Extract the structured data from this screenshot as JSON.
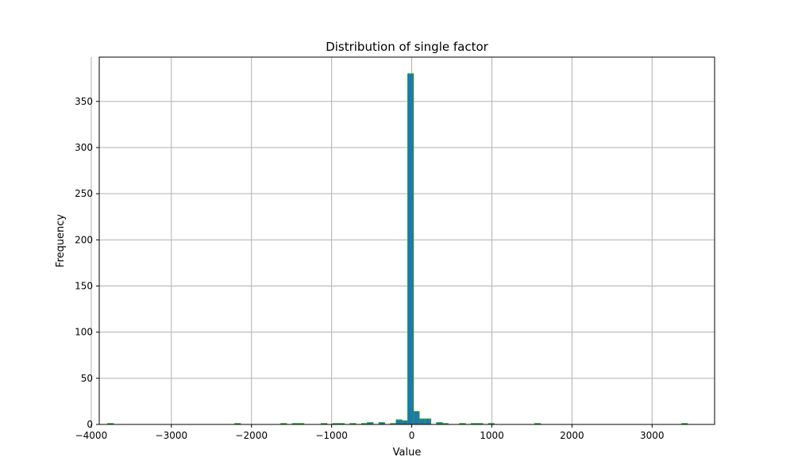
{
  "chart_data": {
    "type": "bar",
    "title": "Distribution of single factor",
    "xlabel": "Value",
    "ylabel": "Frequency",
    "xlim": [
      -3900,
      3780
    ],
    "ylim": [
      0,
      398
    ],
    "xticks": [
      -4000,
      -3000,
      -2000,
      -1000,
      0,
      1000,
      2000,
      3000
    ],
    "xtick_labels": [
      "−4000",
      "−3000",
      "−2000",
      "−1000",
      "0",
      "1000",
      "2000",
      "3000"
    ],
    "yticks": [
      0,
      50,
      100,
      150,
      200,
      250,
      300,
      350
    ],
    "ytick_labels": [
      "0",
      "50",
      "100",
      "150",
      "200",
      "250",
      "300",
      "350"
    ],
    "grid": true,
    "bin_width": 72,
    "bins": [
      {
        "x0": -3795,
        "count": 1
      },
      {
        "x0": -2210,
        "count": 1
      },
      {
        "x0": -1634,
        "count": 1
      },
      {
        "x0": -1490,
        "count": 1
      },
      {
        "x0": -1418,
        "count": 1
      },
      {
        "x0": -1130,
        "count": 1
      },
      {
        "x0": -986,
        "count": 1
      },
      {
        "x0": -914,
        "count": 1
      },
      {
        "x0": -770,
        "count": 1
      },
      {
        "x0": -626,
        "count": 1
      },
      {
        "x0": -554,
        "count": 2
      },
      {
        "x0": -410,
        "count": 2
      },
      {
        "x0": -266,
        "count": 1
      },
      {
        "x0": -194,
        "count": 5
      },
      {
        "x0": -122,
        "count": 4
      },
      {
        "x0": -50,
        "count": 380
      },
      {
        "x0": 22,
        "count": 14
      },
      {
        "x0": 94,
        "count": 6
      },
      {
        "x0": 166,
        "count": 6
      },
      {
        "x0": 310,
        "count": 2
      },
      {
        "x0": 382,
        "count": 1
      },
      {
        "x0": 598,
        "count": 1
      },
      {
        "x0": 742,
        "count": 1
      },
      {
        "x0": 814,
        "count": 1
      },
      {
        "x0": 958,
        "count": 1
      },
      {
        "x0": 1534,
        "count": 1
      },
      {
        "x0": 3370,
        "count": 1
      }
    ],
    "colors": {
      "bar_fill": "#1f77b4",
      "bar_edge": "#2ca02c",
      "grid": "#b0b0b0"
    }
  }
}
